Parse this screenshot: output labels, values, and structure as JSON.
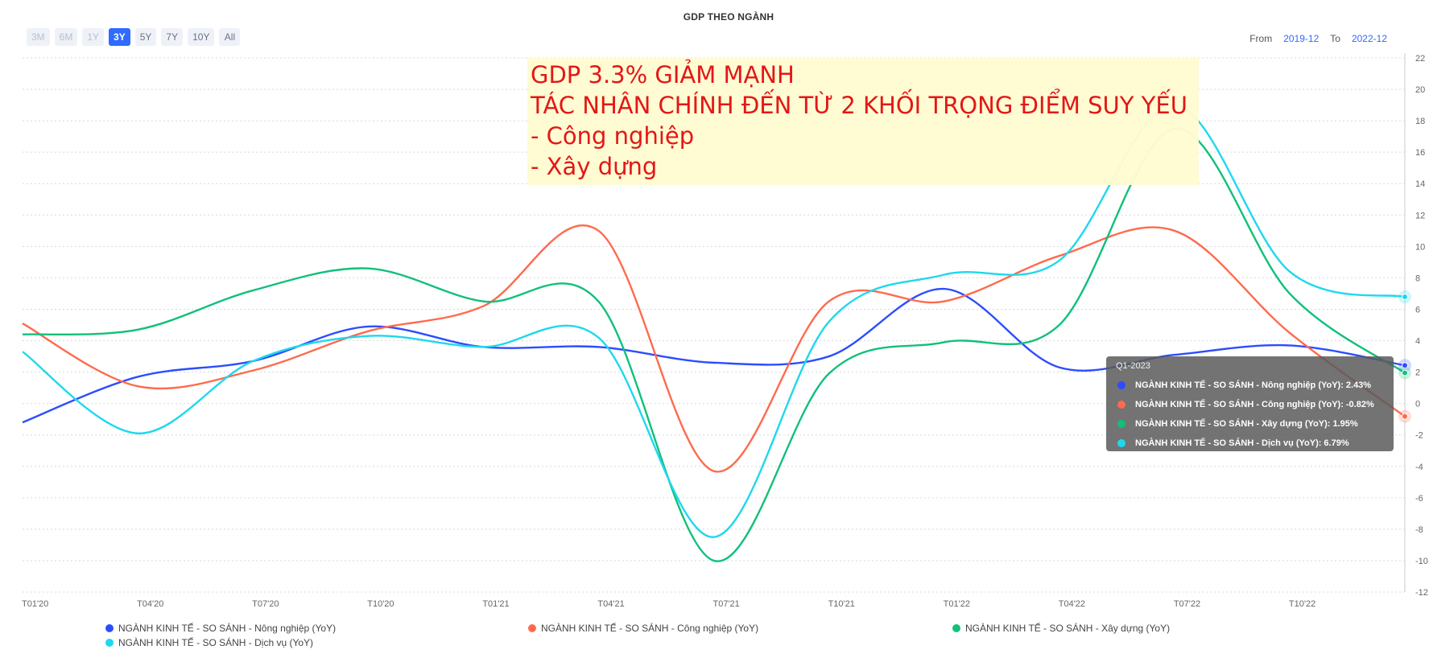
{
  "chart_data": {
    "type": "line",
    "title": "GDP THEO NGÀNH",
    "x_labels": [
      "T01'20",
      "T04'20",
      "T07'20",
      "T10'20",
      "T01'21",
      "T04'21",
      "T07'21",
      "T10'21",
      "T01'22",
      "T04'22",
      "T07'22",
      "T10'22"
    ],
    "x": [
      "2019-12",
      "2020-03",
      "2020-06",
      "2020-09",
      "2020-12",
      "2021-03",
      "2021-06",
      "2021-09",
      "2021-12",
      "2022-03",
      "2022-06",
      "2022-09",
      "2022-12"
    ],
    "yticks": [
      22,
      20,
      18,
      16,
      14,
      12,
      10,
      8,
      6,
      4,
      2,
      0,
      -2,
      -4,
      -6,
      -8,
      -10,
      -12
    ],
    "ylim": [
      -12,
      22
    ],
    "grid": true,
    "legend_position": "bottom",
    "series": [
      {
        "name": "NGÀNH KINH TẾ - SO SÁNH - Nông nghiệp (YoY)",
        "color": "#2c4dff",
        "values": [
          -1.2,
          1.7,
          2.7,
          4.9,
          3.6,
          3.6,
          2.6,
          3.0,
          7.3,
          2.3,
          3.1,
          3.7,
          2.43
        ]
      },
      {
        "name": "NGÀNH KINH TẾ - SO SÁNH - Công nghiệp (YoY)",
        "color": "#ff6a4d",
        "values": [
          5.1,
          1.1,
          2.1,
          4.6,
          6.2,
          11.0,
          -4.3,
          6.5,
          6.5,
          9.4,
          11.0,
          4.5,
          -0.82
        ]
      },
      {
        "name": "NGÀNH KINH TẾ - SO SÁNH - Xây dựng (YoY)",
        "color": "#10c07a",
        "values": [
          4.4,
          4.7,
          7.2,
          8.6,
          6.5,
          6.5,
          -10.0,
          1.9,
          3.9,
          5.0,
          17.5,
          7.0,
          1.95
        ]
      },
      {
        "name": "NGÀNH KINH TẾ - SO SÁNH - Dịch vụ (YoY)",
        "color": "#1ed8ee",
        "values": [
          3.3,
          -1.9,
          2.7,
          4.3,
          3.6,
          4.2,
          -8.5,
          5.2,
          8.2,
          9.1,
          19.0,
          8.4,
          6.79
        ]
      }
    ]
  },
  "range_buttons": [
    {
      "label": "3M",
      "state": "disabled"
    },
    {
      "label": "6M",
      "state": "disabled"
    },
    {
      "label": "1Y",
      "state": "disabled"
    },
    {
      "label": "3Y",
      "state": "active"
    },
    {
      "label": "5Y",
      "state": "normal"
    },
    {
      "label": "7Y",
      "state": "normal"
    },
    {
      "label": "10Y",
      "state": "normal"
    },
    {
      "label": "All",
      "state": "normal"
    }
  ],
  "date_range": {
    "from_label": "From",
    "from_value": "2019-12",
    "to_label": "To",
    "to_value": "2022-12"
  },
  "tooltip": {
    "header": "Q1-2023",
    "rows": [
      {
        "label": "NGÀNH KINH TẾ - SO SÁNH - Nông nghiệp (YoY):",
        "value": "2.43%",
        "color": "#2c4dff"
      },
      {
        "label": "NGÀNH KINH TẾ - SO SÁNH - Công nghiệp (YoY):",
        "value": "-0.82%",
        "color": "#ff6a4d"
      },
      {
        "label": "NGÀNH KINH TẾ - SO SÁNH - Xây dựng (YoY):",
        "value": "1.95%",
        "color": "#10c07a"
      },
      {
        "label": "NGÀNH KINH TẾ - SO SÁNH - Dịch vụ (YoY):",
        "value": "6.79%",
        "color": "#1ed8ee"
      }
    ]
  },
  "annotation": {
    "lines": [
      "GDP 3.3% GIẢM MẠNH",
      "TÁC NHÂN CHÍNH ĐẾN TỪ 2 KHỐI TRỌNG ĐIỂM SUY YẾU",
      "- Công nghiệp",
      "- Xây dựng"
    ],
    "text_color": "#e31010",
    "background": "#fffbd2"
  }
}
